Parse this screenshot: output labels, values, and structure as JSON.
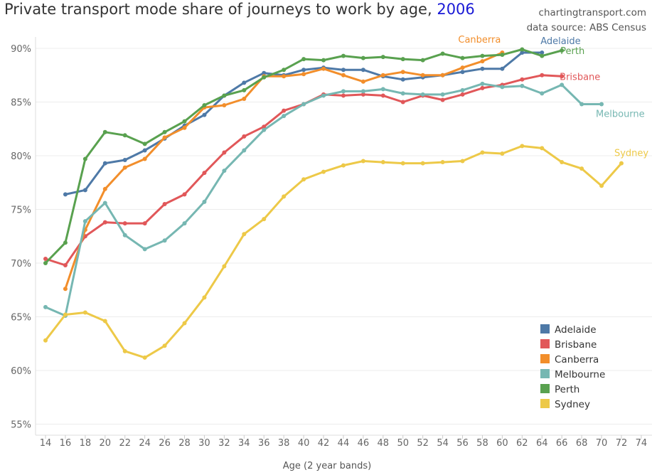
{
  "title_prefix": "Private transport mode share of journeys to work by age, ",
  "title_year": "2006",
  "source_line1": "chartingtransport.com",
  "source_line2": "data source: ABS Census",
  "chart_data": {
    "type": "line",
    "xlabel": "Age (2 year bands)",
    "ylabel": "",
    "xlim": [
      13,
      75
    ],
    "ylim": [
      0.545,
      0.917
    ],
    "x_ticks": [
      14,
      16,
      18,
      20,
      22,
      24,
      26,
      28,
      30,
      32,
      34,
      36,
      38,
      40,
      42,
      44,
      46,
      48,
      50,
      52,
      54,
      56,
      58,
      60,
      62,
      64,
      66,
      68,
      70,
      72,
      74
    ],
    "y_ticks": [
      {
        "value": 0.55,
        "label": "55%"
      },
      {
        "value": 0.6,
        "label": "60%"
      },
      {
        "value": 0.65,
        "label": "65%"
      },
      {
        "value": 0.7,
        "label": "70%"
      },
      {
        "value": 0.75,
        "label": "75%"
      },
      {
        "value": 0.8,
        "label": "80%"
      },
      {
        "value": 0.85,
        "label": "85%"
      },
      {
        "value": 0.9,
        "label": "90%"
      }
    ],
    "series": [
      {
        "name": "Adelaide",
        "color": "#4e79a7",
        "end_label": "Adelaide",
        "x": [
          16,
          18,
          20,
          22,
          24,
          26,
          28,
          30,
          32,
          34,
          36,
          38,
          40,
          42,
          44,
          46,
          48,
          50,
          52,
          54,
          56,
          58,
          60,
          62,
          64
        ],
        "y": [
          0.764,
          0.768,
          0.793,
          0.796,
          0.805,
          0.816,
          0.828,
          0.838,
          0.856,
          0.868,
          0.877,
          0.875,
          0.88,
          0.882,
          0.88,
          0.88,
          0.874,
          0.871,
          0.873,
          0.875,
          0.878,
          0.881,
          0.881,
          0.896,
          0.896
        ]
      },
      {
        "name": "Brisbane",
        "color": "#e15759",
        "end_label": "Brisbane",
        "x": [
          14,
          16,
          18,
          20,
          22,
          24,
          26,
          28,
          30,
          32,
          34,
          36,
          38,
          40,
          42,
          44,
          46,
          48,
          50,
          52,
          54,
          56,
          58,
          60,
          62,
          64,
          66
        ],
        "y": [
          0.704,
          0.698,
          0.725,
          0.738,
          0.737,
          0.737,
          0.755,
          0.764,
          0.784,
          0.803,
          0.818,
          0.827,
          0.842,
          0.848,
          0.857,
          0.856,
          0.857,
          0.856,
          0.85,
          0.856,
          0.852,
          0.857,
          0.863,
          0.866,
          0.871,
          0.875,
          0.874
        ]
      },
      {
        "name": "Canberra",
        "color": "#f28e2b",
        "end_label": "Canberra",
        "x": [
          16,
          18,
          20,
          22,
          24,
          26,
          28,
          30,
          32,
          34,
          36,
          38,
          40,
          42,
          44,
          46,
          48,
          50,
          52,
          54,
          56,
          58,
          60
        ],
        "y": [
          0.676,
          0.731,
          0.769,
          0.789,
          0.797,
          0.817,
          0.826,
          0.845,
          0.847,
          0.853,
          0.874,
          0.874,
          0.876,
          0.881,
          0.875,
          0.869,
          0.875,
          0.878,
          0.875,
          0.875,
          0.882,
          0.888,
          0.896
        ]
      },
      {
        "name": "Melbourne",
        "color": "#76b7b2",
        "end_label": "Melbourne",
        "x": [
          14,
          16,
          18,
          20,
          22,
          24,
          26,
          28,
          30,
          32,
          34,
          36,
          38,
          40,
          42,
          44,
          46,
          48,
          50,
          52,
          54,
          56,
          58,
          60,
          62,
          64,
          66,
          68,
          70
        ],
        "y": [
          0.659,
          0.651,
          0.739,
          0.756,
          0.726,
          0.713,
          0.721,
          0.737,
          0.757,
          0.786,
          0.805,
          0.824,
          0.837,
          0.848,
          0.856,
          0.86,
          0.86,
          0.862,
          0.858,
          0.857,
          0.857,
          0.861,
          0.867,
          0.864,
          0.865,
          0.858,
          0.866,
          0.848,
          0.848
        ]
      },
      {
        "name": "Perth",
        "color": "#59a14f",
        "end_label": "Perth",
        "x": [
          14,
          16,
          18,
          20,
          22,
          24,
          26,
          28,
          30,
          32,
          34,
          36,
          38,
          40,
          42,
          44,
          46,
          48,
          50,
          52,
          54,
          56,
          58,
          60,
          62,
          64,
          66
        ],
        "y": [
          0.7,
          0.719,
          0.797,
          0.822,
          0.819,
          0.811,
          0.822,
          0.832,
          0.847,
          0.856,
          0.861,
          0.873,
          0.88,
          0.89,
          0.889,
          0.893,
          0.891,
          0.892,
          0.89,
          0.889,
          0.895,
          0.891,
          0.893,
          0.894,
          0.899,
          0.893,
          0.898
        ]
      },
      {
        "name": "Sydney",
        "color": "#edc948",
        "end_label": "Sydney",
        "x": [
          14,
          16,
          18,
          20,
          22,
          24,
          26,
          28,
          30,
          32,
          34,
          36,
          38,
          40,
          42,
          44,
          46,
          48,
          50,
          52,
          54,
          56,
          58,
          60,
          62,
          64,
          66,
          68,
          70,
          72
        ],
        "y": [
          0.628,
          0.652,
          0.654,
          0.646,
          0.618,
          0.612,
          0.623,
          0.644,
          0.668,
          0.697,
          0.727,
          0.741,
          0.762,
          0.778,
          0.785,
          0.791,
          0.795,
          0.794,
          0.793,
          0.793,
          0.794,
          0.795,
          0.803,
          0.802,
          0.809,
          0.807,
          0.794,
          0.788,
          0.772,
          0.793
        ]
      }
    ],
    "legend": {
      "position": "bottom-right",
      "entries": [
        "Adelaide",
        "Brisbane",
        "Canberra",
        "Melbourne",
        "Perth",
        "Sydney"
      ]
    }
  }
}
